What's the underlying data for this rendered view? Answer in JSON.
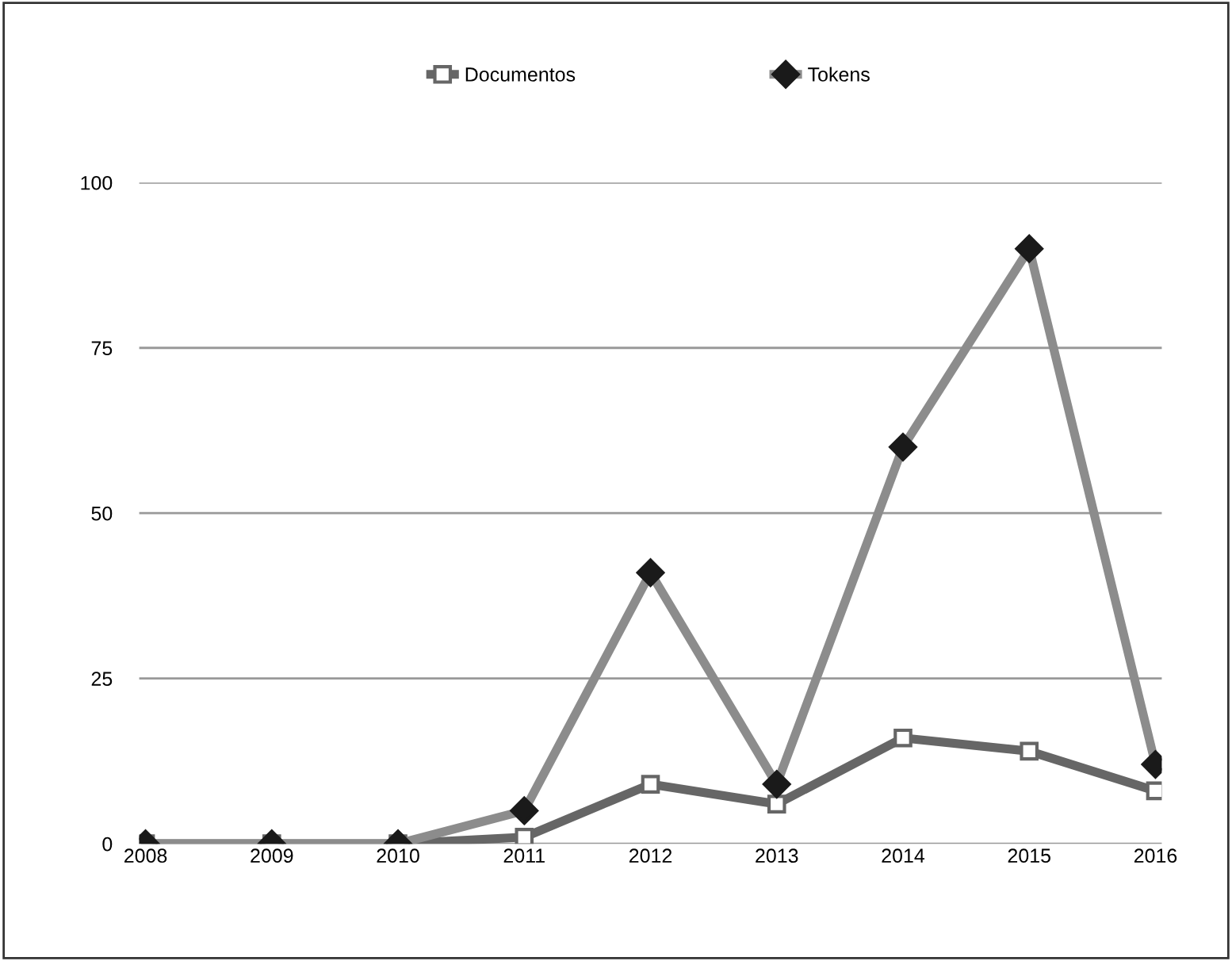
{
  "chart_data": {
    "type": "line",
    "categories": [
      "2008",
      "2009",
      "2010",
      "2011",
      "2012",
      "2013",
      "2014",
      "2015",
      "2016"
    ],
    "series": [
      {
        "name": "Documentos",
        "color": "#666666",
        "values": [
          0,
          0,
          0,
          1,
          9,
          6,
          16,
          14,
          8
        ],
        "marker": "square"
      },
      {
        "name": "Tokens",
        "color": "#8c8c8c",
        "values": [
          0,
          0,
          0,
          5,
          41,
          9,
          60,
          90,
          12
        ],
        "marker": "diamond"
      }
    ],
    "ylim": [
      0,
      100
    ],
    "yticks": [
      0,
      25,
      50,
      75,
      100
    ],
    "grid": "y",
    "legend": "top",
    "line_style": "solid"
  }
}
